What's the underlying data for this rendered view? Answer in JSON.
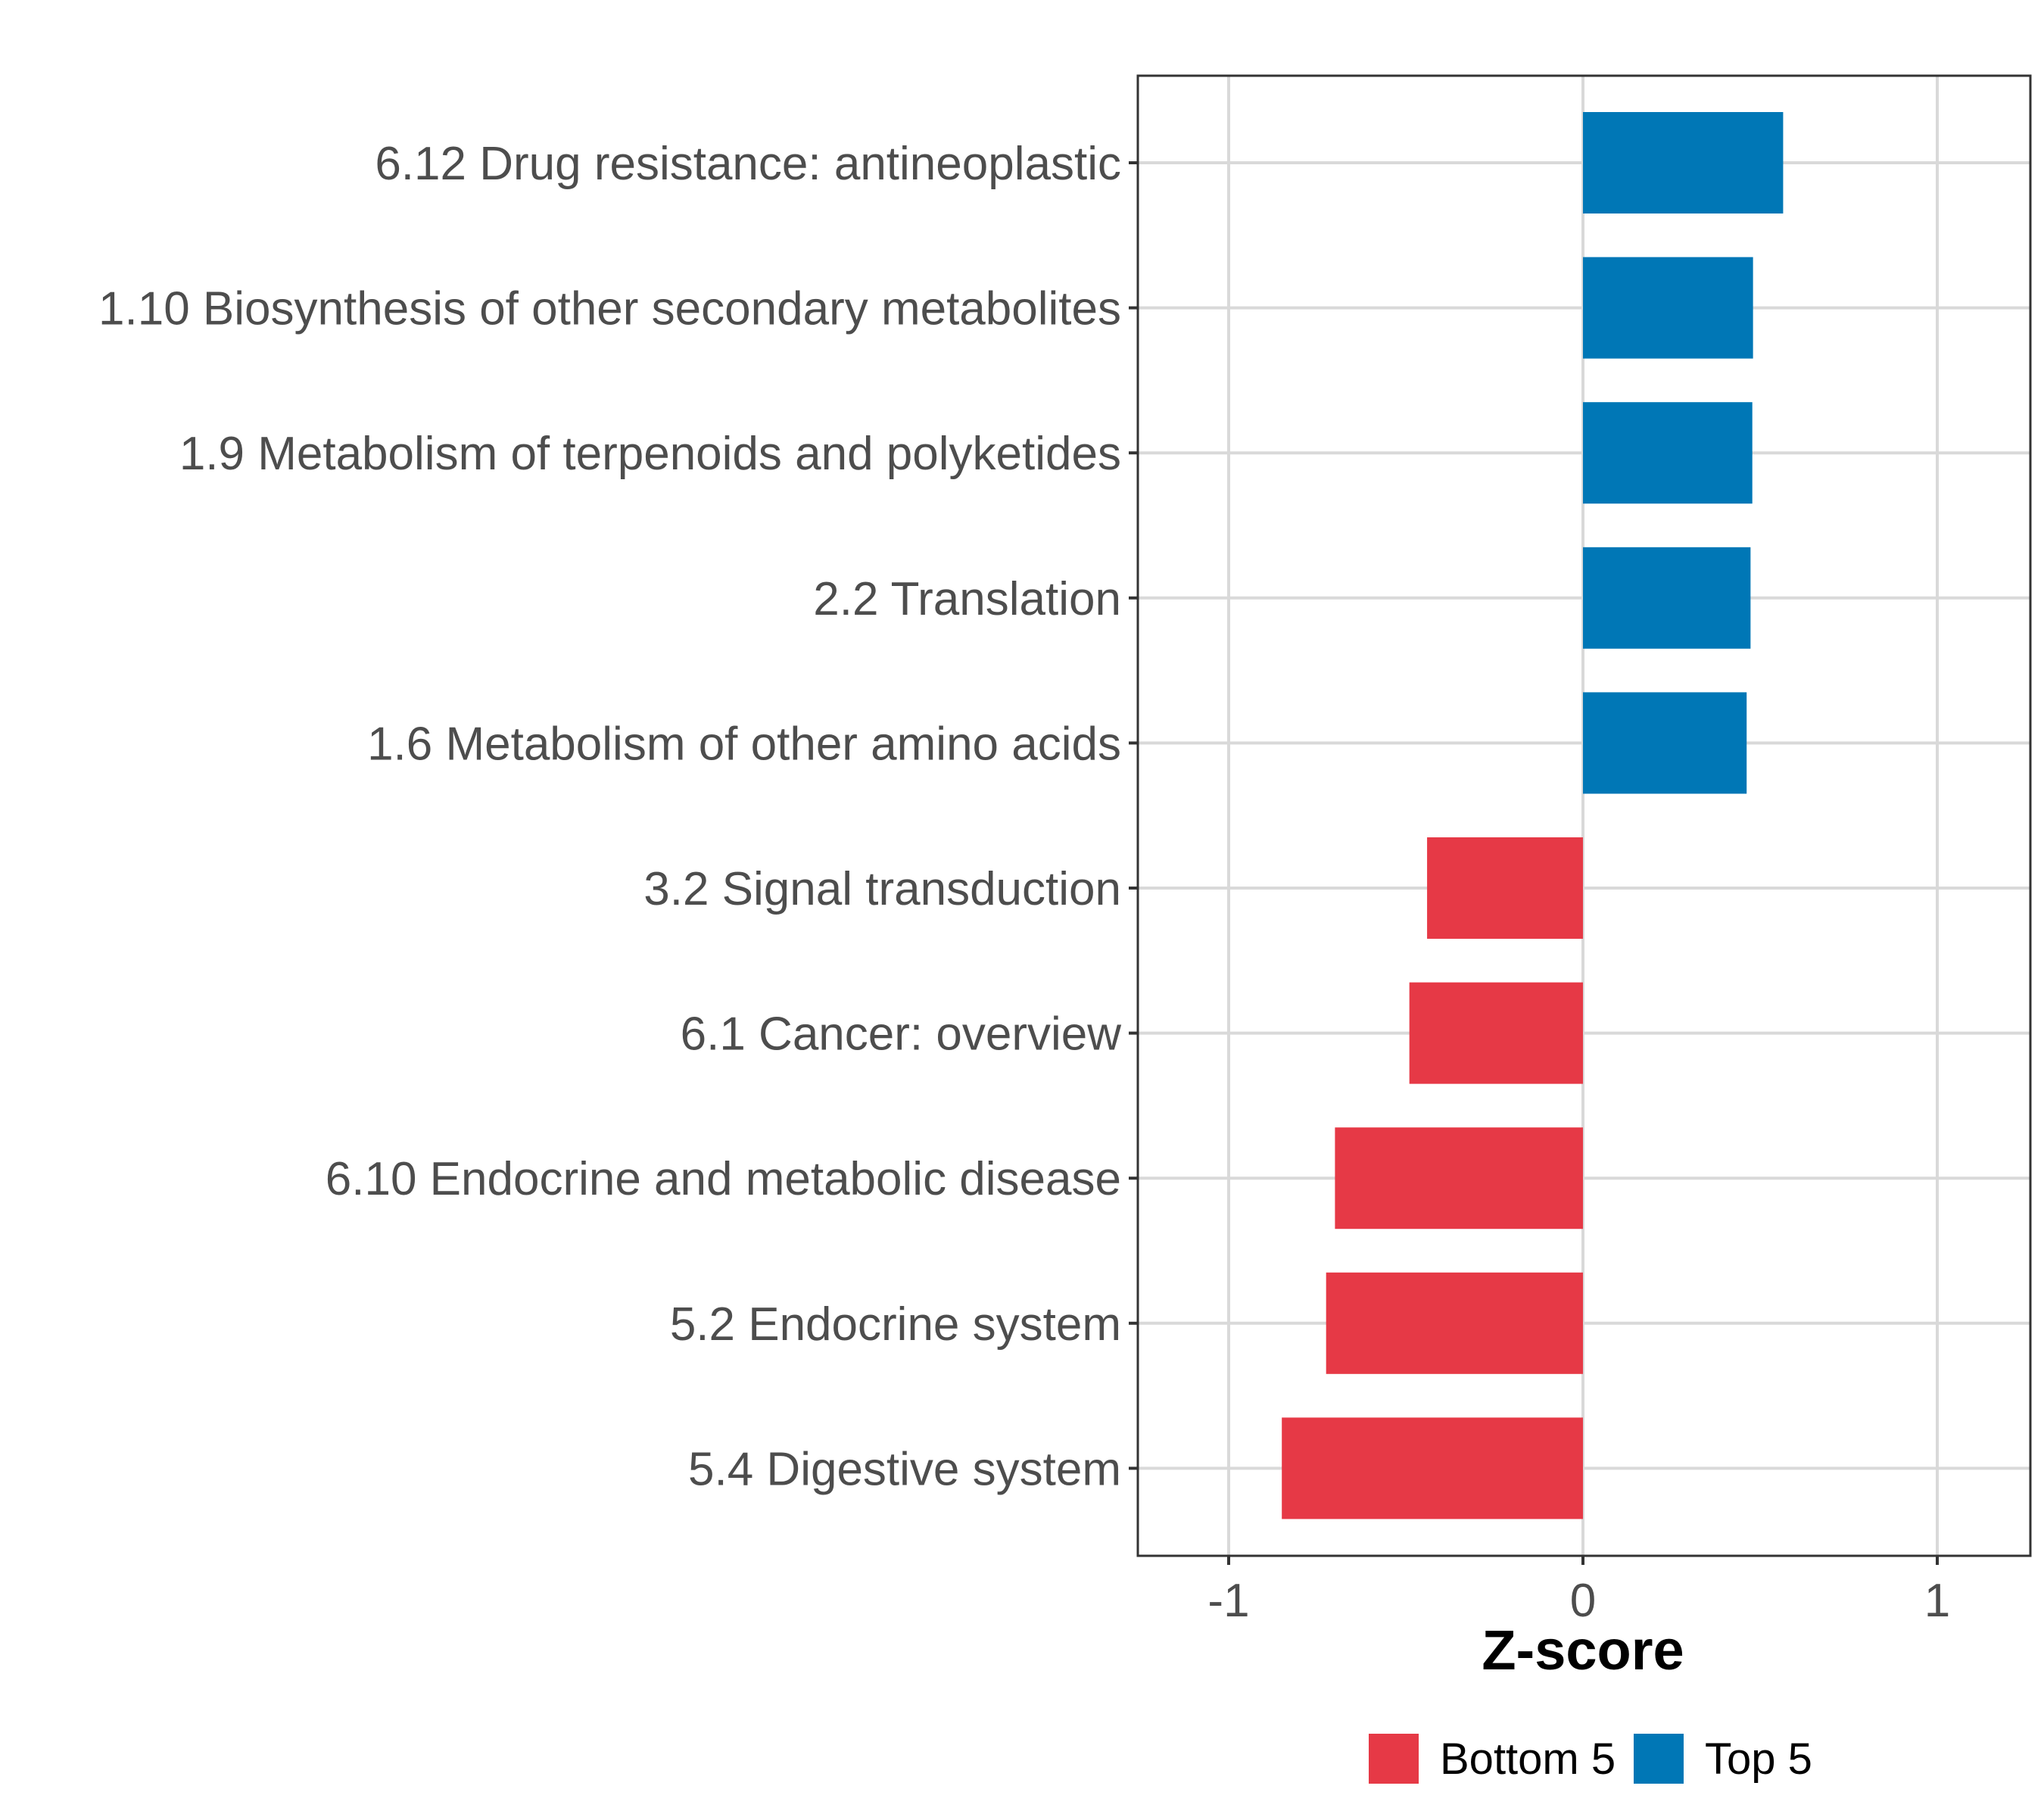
{
  "chart_data": {
    "type": "bar",
    "orientation": "horizontal",
    "title": "",
    "xlabel": "Z-score",
    "ylabel": "",
    "xlim": [
      -1.25,
      1.25
    ],
    "xticks": [
      -1,
      0,
      1
    ],
    "xtick_labels": [
      "-1",
      "0",
      "1"
    ],
    "grid": true,
    "legend_position": "bottom",
    "colors": {
      "Bottom 5": "#e63946",
      "Top 5": "#0077b6"
    },
    "legend": [
      {
        "label": "Bottom 5",
        "color": "#e63946"
      },
      {
        "label": "Top 5",
        "color": "#0077b6"
      }
    ],
    "categories": [
      "6.12 Drug resistance: antineoplastic",
      "1.10 Biosynthesis of other secondary metabolites",
      "1.9 Metabolism of terpenoids and polyketides",
      "2.2 Translation",
      "1.6 Metabolism of other amino acids",
      "3.2 Signal transduction",
      "6.1 Cancer: overview",
      "6.10 Endocrine and metabolic disease",
      "5.2 Endocrine system",
      "5.4 Digestive system"
    ],
    "values": [
      0.565,
      0.48,
      0.478,
      0.473,
      0.462,
      -0.44,
      -0.49,
      -0.7,
      -0.725,
      -0.85
    ],
    "groups": [
      "Top 5",
      "Top 5",
      "Top 5",
      "Top 5",
      "Top 5",
      "Bottom 5",
      "Bottom 5",
      "Bottom 5",
      "Bottom 5",
      "Bottom 5"
    ]
  }
}
